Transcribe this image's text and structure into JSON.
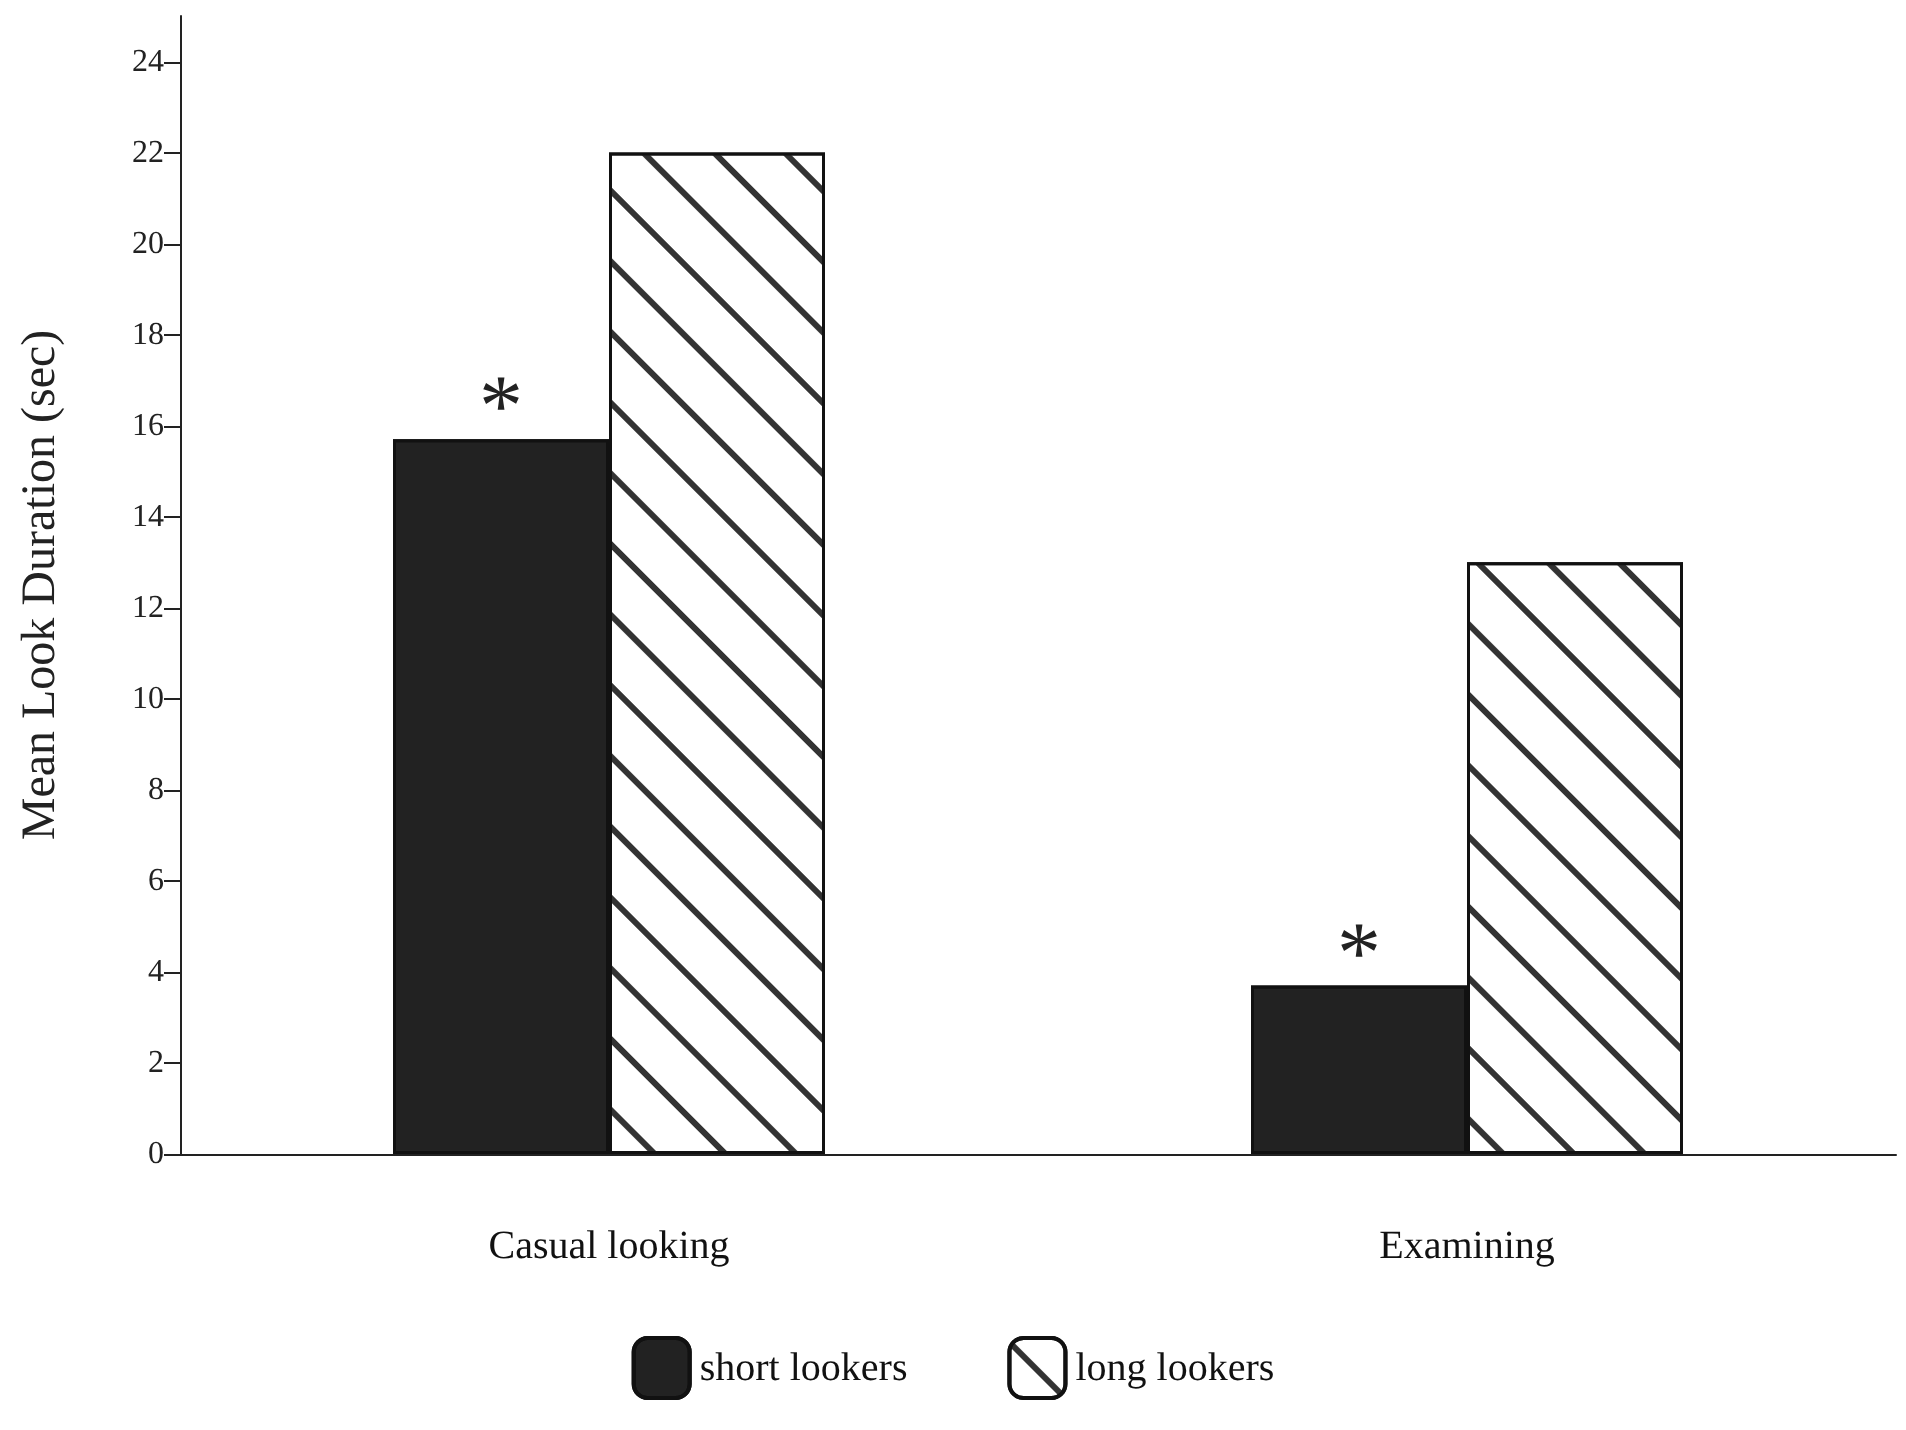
{
  "chart_data": {
    "type": "bar",
    "ylabel": "Mean Look Duration (sec)",
    "categories": [
      "Casual looking",
      "Examining"
    ],
    "series": [
      {
        "name": "short lookers",
        "color": "#222222",
        "values": [
          15.7,
          3.7
        ]
      },
      {
        "name": "long lookers",
        "color": "#ffffff",
        "values": [
          22.0,
          13.0
        ]
      }
    ],
    "ylim": [
      0,
      25
    ],
    "yticks": [
      0,
      2,
      4,
      6,
      8,
      10,
      12,
      14,
      16,
      18,
      20,
      22,
      24
    ],
    "annotations": [
      {
        "text": "*",
        "x": "Casual looking",
        "y": 15.7
      },
      {
        "text": "*",
        "x": "Examining",
        "y": 3.7
      }
    ],
    "grid": false,
    "legend": "bottom"
  }
}
